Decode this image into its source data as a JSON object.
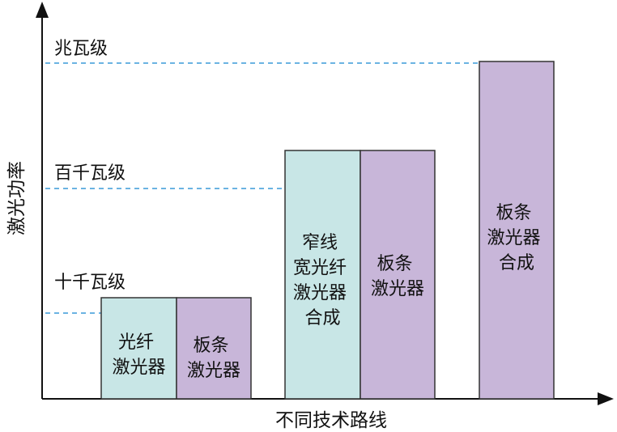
{
  "colors": {
    "teal": "#c8e6e6",
    "purple": "#c8b6d9",
    "guide": "#3a9ad9",
    "axis": "#111111"
  },
  "axes": {
    "y_label": "激光功率",
    "x_label": "不同技术路线"
  },
  "levels": [
    {
      "label": "兆瓦级"
    },
    {
      "label": "百千瓦级"
    },
    {
      "label": "十千瓦级"
    }
  ],
  "bars": [
    {
      "color": "teal",
      "lines": [
        "光纤",
        "激光器"
      ]
    },
    {
      "color": "purple",
      "lines": [
        "板条",
        "激光器"
      ]
    },
    {
      "color": "teal",
      "lines": [
        "窄线",
        "宽光纤",
        "激光器",
        "合成"
      ]
    },
    {
      "color": "purple",
      "lines": [
        "板条",
        "激光器"
      ]
    },
    {
      "color": "purple",
      "lines": [
        "板条",
        "激光器",
        "合成"
      ]
    }
  ]
}
